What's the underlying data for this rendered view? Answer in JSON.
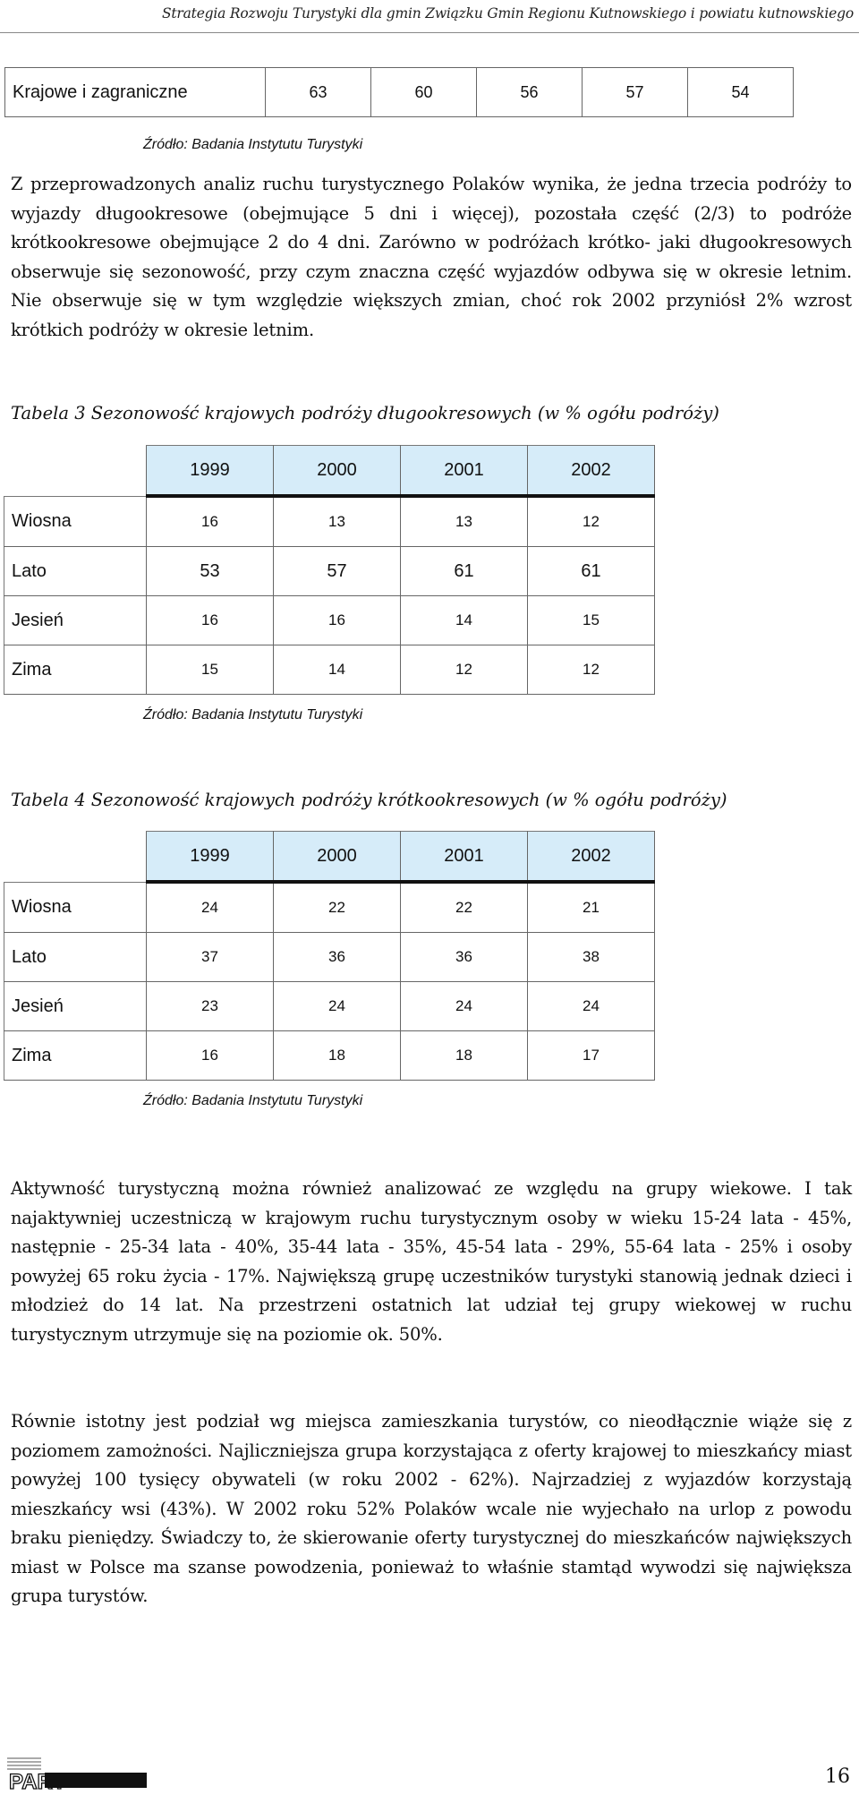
{
  "header": {
    "running_title": "Strategia Rozwoju Turystyki dla gmin Związku Gmin Regionu Kutnowskiego i powiatu kutnowskiego"
  },
  "table1": {
    "row_label": "Krajowe i zagraniczne",
    "values": [
      "63",
      "60",
      "56",
      "57",
      "54"
    ]
  },
  "source_label": "Źródło: Badania Instytutu Turystyki",
  "para1": "Z przeprowadzonych analiz ruchu turystycznego Polaków wynika, że jedna trzecia podróży to wyjazdy długookresowe (obejmujące 5 dni i więcej), pozostała część (2/3) to podróże krótkookresowe obejmujące 2 do 4 dni. Zarówno w podróżach krótko- jaki długookresowych obserwuje się sezonowość, przy czym znaczna część wyjazdów odbywa się w okresie letnim. Nie obserwuje się w tym względzie większych zmian, choć rok 2002 przyniósł 2% wzrost krótkich podróży w okresie letnim.",
  "table3": {
    "caption": "Tabela 3 Sezonowość krajowych podróży długookresowych (w % ogółu podróży)",
    "years": [
      "1999",
      "2000",
      "2001",
      "2002"
    ],
    "rows": [
      {
        "label": "Wiosna",
        "values": [
          "16",
          "13",
          "13",
          "12"
        ]
      },
      {
        "label": "Lato",
        "values": [
          "53",
          "57",
          "61",
          "61"
        ]
      },
      {
        "label": "Jesień",
        "values": [
          "16",
          "16",
          "14",
          "15"
        ]
      },
      {
        "label": "Zima",
        "values": [
          "15",
          "14",
          "12",
          "12"
        ]
      }
    ]
  },
  "table4": {
    "caption": "Tabela 4 Sezonowość krajowych podróży krótkookresowych (w % ogółu podróży)",
    "years": [
      "1999",
      "2000",
      "2001",
      "2002"
    ],
    "rows": [
      {
        "label": "Wiosna",
        "values": [
          "24",
          "22",
          "22",
          "21"
        ]
      },
      {
        "label": "Lato",
        "values": [
          "37",
          "36",
          "36",
          "38"
        ]
      },
      {
        "label": "Jesień",
        "values": [
          "23",
          "24",
          "24",
          "24"
        ]
      },
      {
        "label": "Zima",
        "values": [
          "16",
          "18",
          "18",
          "17"
        ]
      }
    ]
  },
  "para2": "Aktywność turystyczną można również analizować ze względu na grupy wiekowe. I tak najaktywniej uczestniczą w krajowym ruchu turystycznym osoby w wieku 15-24 lata - 45%, następnie - 25-34 lata - 40%, 35-44 lata - 35%, 45-54 lata - 29%, 55-64 lata - 25% i osoby powyżej 65 roku życia - 17%. Największą grupę uczestników turystyki stanowią jednak dzieci i młodzież do 14 lat. Na przestrzeni ostatnich lat udział tej grupy wiekowej w ruchu turystycznym utrzymuje się na poziomie ok. 50%.",
  "para3": "Równie istotny jest podział wg miejsca zamieszkania turystów, co nieodłącznie wiąże się z poziomem zamożności. Najliczniejsza grupa korzystająca z oferty krajowej to mieszkańcy miast powyżej 100 tysięcy obywateli (w roku 2002 - 62%). Najrzadziej z wyjazdów korzystają mieszkańcy wsi (43%). W 2002 roku 52% Polaków wcale nie wyjechało na urlop z powodu braku pieniędzy. Świadczy to, że skierowanie oferty turystycznej do mieszkańców największych miast w Polsce ma szanse powodzenia, ponieważ to właśnie stamtąd wywodzi się największa grupa turystów.",
  "footer": {
    "logo_text": "PART",
    "page_number": "16"
  }
}
